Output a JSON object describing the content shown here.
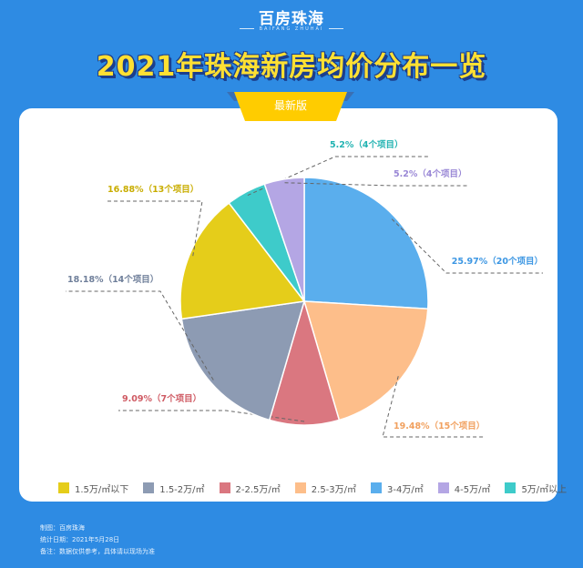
{
  "brand": {
    "logo": "百房珠海",
    "logo_sub": "BAIFANG ZHUHAI"
  },
  "title": "2021年珠海新房均价分布一览",
  "badge": "最新版",
  "colors": {
    "background": "#2e8be3",
    "title": "#ffe033",
    "badge": "#ffcc00",
    "badge_dark": "#3a6fb3"
  },
  "chart_data": {
    "type": "pie",
    "start_angle_deg": 0,
    "direction": "clockwise",
    "slices": [
      {
        "legend": "3-4万/㎡",
        "value": 25.97,
        "label": "25.97%（20个项目）",
        "color": "#5aaeed"
      },
      {
        "legend": "2.5-3万/㎡",
        "value": 19.48,
        "label": "19.48%（15个项目）",
        "color": "#fdbe8a"
      },
      {
        "legend": "2-2.5万/㎡",
        "value": 9.09,
        "label": "9.09%（7个项目）",
        "color": "#da7780"
      },
      {
        "legend": "1.5-2万/㎡",
        "value": 18.18,
        "label": "18.18%（14个项目）",
        "color": "#8d9bb3"
      },
      {
        "legend": "1.5万/㎡以下",
        "value": 16.88,
        "label": "16.88%（13个项目）",
        "color": "#e5cd1a"
      },
      {
        "legend": "5万/㎡以上",
        "value": 5.2,
        "label": "5.2%（4个项目）",
        "color": "#3ecbca"
      },
      {
        "legend": "4-5万/㎡",
        "value": 5.2,
        "label": "5.2%（4个项目）",
        "color": "#b4a6e4"
      }
    ],
    "legend_order": [
      {
        "label": "1.5万/㎡以下",
        "color": "#e5cd1a"
      },
      {
        "label": "1.5-2万/㎡",
        "color": "#8d9bb3"
      },
      {
        "label": "2-2.5万/㎡",
        "color": "#da7780"
      },
      {
        "label": "2.5-3万/㎡",
        "color": "#fdbe8a"
      },
      {
        "label": "3-4万/㎡",
        "color": "#5aaeed"
      },
      {
        "label": "4-5万/㎡",
        "color": "#b4a6e4"
      },
      {
        "label": "5万/㎡以上",
        "color": "#3ecbca"
      }
    ],
    "legend_placement": "bottom"
  },
  "footer": {
    "line1": "制图：百房珠海",
    "line2": "统计日期：2021年5月28日",
    "line3": "备注：数据仅供参考，具体请以现场为准"
  }
}
